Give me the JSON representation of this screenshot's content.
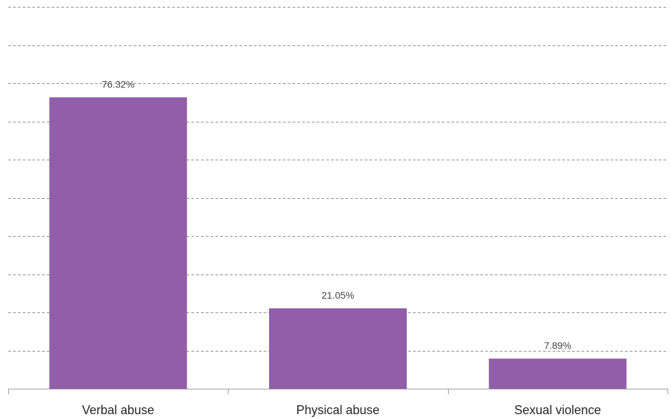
{
  "chart_data": {
    "type": "bar",
    "categories": [
      "Verbal abuse",
      "Physical abuse",
      "Sexual violence"
    ],
    "values": [
      76.32,
      21.05,
      7.89
    ],
    "data_labels": [
      "76.32%",
      "21.05%",
      "7.89%"
    ],
    "title": "",
    "xlabel": "",
    "ylabel": "",
    "ylim": [
      0,
      100
    ],
    "grid": true,
    "grid_step": 10,
    "grid_style": "dashed",
    "y_tick_labels_visible": false,
    "legend": "none",
    "colors": {
      "bar": "#915ea9",
      "grid": "#8c8c8c",
      "axis": "#9a9a9a",
      "label_text": "#404040",
      "category_text": "#262626"
    }
  }
}
